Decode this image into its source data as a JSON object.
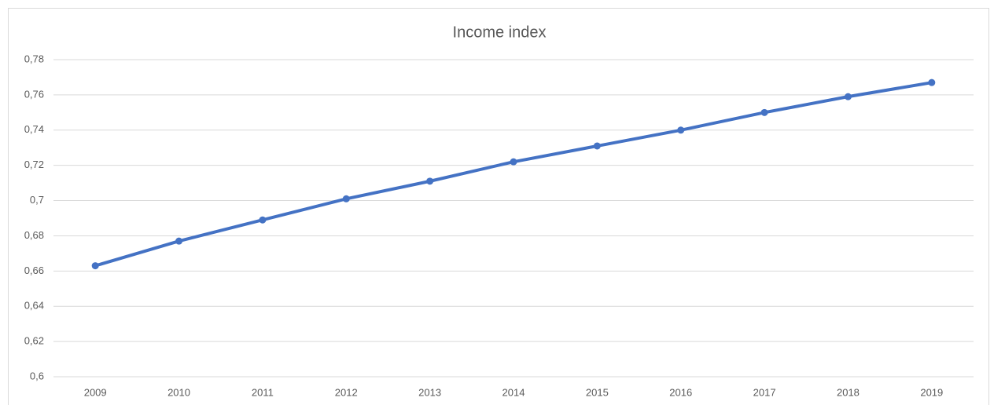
{
  "chart_data": {
    "type": "line",
    "title": "Income index",
    "categories": [
      "2009",
      "2010",
      "2011",
      "2012",
      "2013",
      "2014",
      "2015",
      "2016",
      "2017",
      "2018",
      "2019"
    ],
    "values": [
      0.663,
      0.677,
      0.689,
      0.701,
      0.711,
      0.722,
      0.731,
      0.74,
      0.75,
      0.759,
      0.767
    ],
    "color": "#4472c4",
    "ylim": [
      0.6,
      0.78
    ],
    "yticks": [
      {
        "value": 0.6,
        "label": "0,6"
      },
      {
        "value": 0.62,
        "label": "0,62"
      },
      {
        "value": 0.64,
        "label": "0,64"
      },
      {
        "value": 0.66,
        "label": "0,66"
      },
      {
        "value": 0.68,
        "label": "0,68"
      },
      {
        "value": 0.7,
        "label": "0,7"
      },
      {
        "value": 0.72,
        "label": "0,72"
      },
      {
        "value": 0.74,
        "label": "0,74"
      },
      {
        "value": 0.76,
        "label": "0,76"
      },
      {
        "value": 0.78,
        "label": "0,78"
      }
    ],
    "grid": true
  }
}
